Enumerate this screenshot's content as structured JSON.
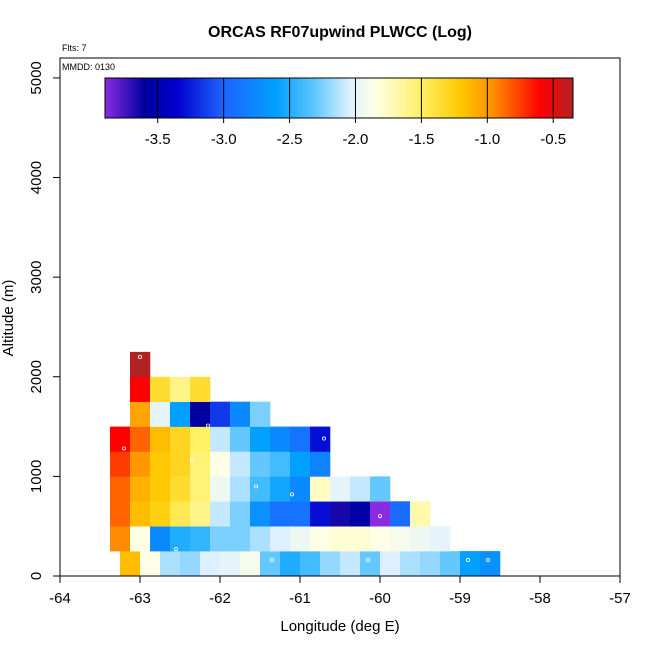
{
  "chart_data": {
    "type": "heatmap",
    "title": "ORCAS RF07upwind PLWCC (Log)",
    "xlabel": "Longitude (deg E)",
    "ylabel": "Altitude (m)",
    "xlim": [
      -64,
      -57
    ],
    "ylim": [
      0,
      5200
    ],
    "x_ticks": [
      "-64",
      "-63",
      "-62",
      "-61",
      "-60",
      "-59",
      "-58",
      "-57"
    ],
    "y_ticks": [
      "0",
      "1000",
      "2000",
      "3000",
      "4000",
      "5000"
    ],
    "annotations": {
      "flights": "Flts: 7",
      "mmdd": "MMDD: 0130"
    },
    "colorbar": {
      "range": [
        -3.9,
        -0.35
      ],
      "ticks": [
        "-3.5",
        "-3.0",
        "-2.5",
        "-2.0",
        "-1.5",
        "-1.0",
        "-0.5"
      ],
      "tick_values": [
        -3.5,
        -3.0,
        -2.5,
        -2.0,
        -1.5,
        -1.0,
        -0.5
      ],
      "colors": [
        "#8a2be2",
        "#0000a0",
        "#0000cd",
        "#1e64ff",
        "#00a0ff",
        "#64c8ff",
        "#dcf0ff",
        "#ffffe6",
        "#fff064",
        "#ffc800",
        "#ff8c00",
        "#ff0000",
        "#b22222"
      ],
      "stops": [
        -3.9,
        -3.6,
        -3.35,
        -3.0,
        -2.6,
        -2.3,
        -2.05,
        -1.85,
        -1.5,
        -1.2,
        -0.95,
        -0.6,
        -0.35
      ]
    },
    "cell_size": {
      "lon": 0.25,
      "alt": 250
    },
    "cells": [
      [
        -63.125,
        125,
        -1.15
      ],
      [
        -62.875,
        125,
        -1.85
      ],
      [
        -62.625,
        125,
        -2.15
      ],
      [
        -62.375,
        125,
        -2.2
      ],
      [
        -62.125,
        125,
        -2.05
      ],
      [
        -61.875,
        125,
        -2.0
      ],
      [
        -61.625,
        125,
        -1.9
      ],
      [
        -61.375,
        125,
        -2.3
      ],
      [
        -61.125,
        125,
        -2.5
      ],
      [
        -60.875,
        125,
        -2.4
      ],
      [
        -60.625,
        125,
        -2.2
      ],
      [
        -60.375,
        125,
        -2.1
      ],
      [
        -60.125,
        125,
        -2.3
      ],
      [
        -59.875,
        125,
        -2.05
      ],
      [
        -59.625,
        125,
        -2.15
      ],
      [
        -59.375,
        125,
        -2.2
      ],
      [
        -59.125,
        125,
        -2.3
      ],
      [
        -58.875,
        125,
        -2.6
      ],
      [
        -58.625,
        125,
        -2.7
      ],
      [
        -63.25,
        375,
        -0.95
      ],
      [
        -63.0,
        375,
        -1.85
      ],
      [
        -62.75,
        375,
        -2.75
      ],
      [
        -62.5,
        375,
        -2.5
      ],
      [
        -62.25,
        375,
        -2.45
      ],
      [
        -62.0,
        375,
        -2.25
      ],
      [
        -61.75,
        375,
        -2.25
      ],
      [
        -61.5,
        375,
        -2.15
      ],
      [
        -61.25,
        375,
        -2.05
      ],
      [
        -61.0,
        375,
        -1.95
      ],
      [
        -60.75,
        375,
        -1.85
      ],
      [
        -60.5,
        375,
        -1.8
      ],
      [
        -60.25,
        375,
        -1.8
      ],
      [
        -60.0,
        375,
        -1.85
      ],
      [
        -59.75,
        375,
        -1.9
      ],
      [
        -59.5,
        375,
        -1.95
      ],
      [
        -59.25,
        375,
        -2.0
      ],
      [
        -63.25,
        625,
        -0.85
      ],
      [
        -63.0,
        625,
        -1.15
      ],
      [
        -62.75,
        625,
        -1.25
      ],
      [
        -62.5,
        625,
        -1.45
      ],
      [
        -62.25,
        625,
        -1.6
      ],
      [
        -62.0,
        625,
        -2.1
      ],
      [
        -61.75,
        625,
        -2.25
      ],
      [
        -61.5,
        625,
        -2.7
      ],
      [
        -61.25,
        625,
        -2.9
      ],
      [
        -61.0,
        625,
        -2.9
      ],
      [
        -60.75,
        625,
        -3.3
      ],
      [
        -60.5,
        625,
        -3.65
      ],
      [
        -60.25,
        625,
        -3.55
      ],
      [
        -60.0,
        625,
        -3.9
      ],
      [
        -59.75,
        625,
        -2.95
      ],
      [
        -59.5,
        625,
        -1.7
      ],
      [
        -63.25,
        875,
        -0.85
      ],
      [
        -63.0,
        875,
        -1.1
      ],
      [
        -62.75,
        875,
        -1.2
      ],
      [
        -62.5,
        875,
        -1.35
      ],
      [
        -62.25,
        875,
        -1.55
      ],
      [
        -62.0,
        875,
        -1.95
      ],
      [
        -61.75,
        875,
        -2.15
      ],
      [
        -61.5,
        875,
        -2.4
      ],
      [
        -61.25,
        875,
        -2.55
      ],
      [
        -61.0,
        875,
        -2.75
      ],
      [
        -60.75,
        875,
        -1.75
      ],
      [
        -60.5,
        875,
        -2.0
      ],
      [
        -60.25,
        875,
        -2.1
      ],
      [
        -60.0,
        875,
        -2.3
      ],
      [
        -63.25,
        1125,
        -0.75
      ],
      [
        -63.0,
        1125,
        -1.0
      ],
      [
        -62.75,
        1125,
        -1.2
      ],
      [
        -62.5,
        1125,
        -1.3
      ],
      [
        -62.25,
        1125,
        -1.55
      ],
      [
        -62.0,
        1125,
        -1.85
      ],
      [
        -61.75,
        1125,
        -2.1
      ],
      [
        -61.5,
        1125,
        -2.3
      ],
      [
        -61.25,
        1125,
        -2.4
      ],
      [
        -61.0,
        1125,
        -2.6
      ],
      [
        -60.75,
        1125,
        -2.8
      ],
      [
        -63.25,
        1375,
        -0.6
      ],
      [
        -63.0,
        1375,
        -0.85
      ],
      [
        -62.75,
        1375,
        -1.15
      ],
      [
        -62.5,
        1375,
        -1.3
      ],
      [
        -62.25,
        1375,
        -1.5
      ],
      [
        -62.0,
        1375,
        -2.1
      ],
      [
        -61.75,
        1375,
        -2.3
      ],
      [
        -61.5,
        1375,
        -2.6
      ],
      [
        -61.25,
        1375,
        -2.75
      ],
      [
        -61.0,
        1375,
        -2.9
      ],
      [
        -60.75,
        1375,
        -3.3
      ],
      [
        -63.0,
        1625,
        -1.05
      ],
      [
        -62.75,
        1625,
        -2.0
      ],
      [
        -62.5,
        1625,
        -2.6
      ],
      [
        -62.25,
        1625,
        -3.6
      ],
      [
        -62.0,
        1625,
        -3.15
      ],
      [
        -61.75,
        1625,
        -2.75
      ],
      [
        -61.5,
        1625,
        -2.25
      ],
      [
        -63.0,
        1875,
        -0.6
      ],
      [
        -62.75,
        1875,
        -1.35
      ],
      [
        -62.5,
        1875,
        -1.6
      ],
      [
        -62.25,
        1875,
        -1.35
      ],
      [
        -63.0,
        2125,
        -0.35
      ]
    ],
    "sample_points": [
      [
        -62.96,
        160
      ],
      [
        -62.93,
        160
      ],
      [
        -62.55,
        270
      ],
      [
        -61.35,
        160
      ],
      [
        -60.15,
        160
      ],
      [
        -58.9,
        160
      ],
      [
        -58.65,
        160
      ],
      [
        -59.3,
        690
      ],
      [
        -63.05,
        410
      ],
      [
        -62.35,
        1160
      ],
      [
        -61.1,
        820
      ],
      [
        -60.0,
        600
      ],
      [
        -61.55,
        900
      ],
      [
        -60.7,
        1380
      ],
      [
        -62.15,
        1510
      ],
      [
        -63.2,
        1280
      ],
      [
        -63.0,
        2200
      ]
    ]
  }
}
